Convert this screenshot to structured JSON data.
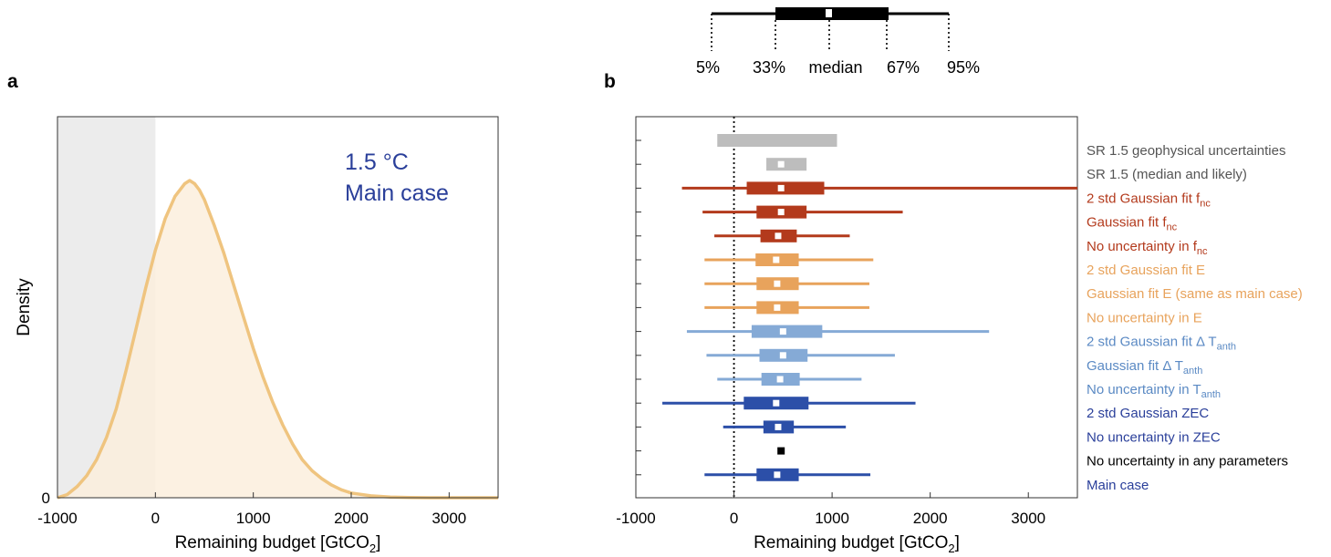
{
  "figure": {
    "legend_key": {
      "labels": [
        "5%",
        "33%",
        "median",
        "67%",
        "95%"
      ]
    },
    "chart_data": [
      {
        "panel_label": "a",
        "type": "area",
        "xlabel": "Remaining budget [GtCO",
        "xlabel_sub": "2",
        "xlabel_end": "]",
        "ylabel": "Density",
        "ytick_label": "0",
        "xlim": [
          -1000,
          3500
        ],
        "xticks": [
          -1000,
          0,
          1000,
          2000,
          3000
        ],
        "xtick_labels": [
          "-1000",
          "0",
          "1000",
          "2000",
          "3000"
        ],
        "annotation_line1": "1.5 °C",
        "annotation_line2": "Main case",
        "annotation_color": "#2a3f9a",
        "shaded_region": [
          -1000,
          0
        ],
        "line_color": "#efc47f",
        "fill_color": "#fbeedd",
        "x": [
          -1000,
          -900,
          -800,
          -700,
          -600,
          -500,
          -400,
          -300,
          -200,
          -100,
          0,
          100,
          200,
          300,
          350,
          400,
          450,
          500,
          600,
          700,
          800,
          900,
          1000,
          1100,
          1200,
          1300,
          1400,
          1500,
          1600,
          1700,
          1800,
          1900,
          2000,
          2200,
          2400,
          2600,
          2800,
          3000,
          3200,
          3500
        ],
        "y": [
          0.0,
          0.01,
          0.035,
          0.07,
          0.12,
          0.19,
          0.28,
          0.4,
          0.53,
          0.66,
          0.78,
          0.88,
          0.95,
          0.99,
          1.0,
          0.99,
          0.97,
          0.94,
          0.86,
          0.77,
          0.67,
          0.57,
          0.47,
          0.38,
          0.3,
          0.23,
          0.17,
          0.12,
          0.085,
          0.06,
          0.04,
          0.025,
          0.015,
          0.006,
          0.002,
          0.001,
          0.0,
          0.0,
          0.0,
          0.0
        ]
      },
      {
        "panel_label": "b",
        "type": "boxplot",
        "xlabel": "Remaining budget [GtCO",
        "xlabel_sub": "2",
        "xlabel_end": "]",
        "xlim": [
          -1000,
          3500
        ],
        "xticks": [
          -1000,
          0,
          1000,
          2000,
          3000
        ],
        "xtick_labels": [
          "-1000",
          "0",
          "1000",
          "2000",
          "3000"
        ],
        "reference_line_x": 0,
        "rows": [
          {
            "label": "SR 1.5 geophysical uncertainties",
            "sub": "",
            "color": "#bdbdbd",
            "label_color": "#555555",
            "style": "bar",
            "p33": -170,
            "p67": 1050
          },
          {
            "label": "SR 1.5 (median and likely)",
            "sub": "",
            "color": "#bdbdbd",
            "label_color": "#555555",
            "style": "box",
            "p33": 330,
            "median": 480,
            "p67": 740
          },
          {
            "label": "2 std Gaussian fit f",
            "sub": "nc",
            "color": "#b33a1c",
            "label_color": "#b33a1c",
            "style": "box",
            "p5": -530,
            "p33": 130,
            "median": 480,
            "p67": 920,
            "p95": 3500
          },
          {
            "label": "Gaussian fit  f",
            "sub": "nc",
            "color": "#b33a1c",
            "label_color": "#b33a1c",
            "style": "box",
            "p5": -320,
            "p33": 230,
            "median": 480,
            "p67": 740,
            "p95": 1720
          },
          {
            "label": "No uncertainty in f",
            "sub": "nc",
            "color": "#b33a1c",
            "label_color": "#b33a1c",
            "style": "box",
            "p5": -200,
            "p33": 270,
            "median": 450,
            "p67": 640,
            "p95": 1180
          },
          {
            "label": "2 std Gaussian fit E",
            "sub": "",
            "color": "#e8a35c",
            "label_color": "#e8a35c",
            "style": "box",
            "p5": -300,
            "p33": 220,
            "median": 430,
            "p67": 660,
            "p95": 1420
          },
          {
            "label": "Gaussian fit E (same as main case)",
            "sub": "",
            "color": "#e8a35c",
            "label_color": "#e8a35c",
            "style": "box",
            "p5": -300,
            "p33": 230,
            "median": 440,
            "p67": 660,
            "p95": 1380
          },
          {
            "label": "No uncertainty in E",
            "sub": "",
            "color": "#e8a35c",
            "label_color": "#e8a35c",
            "style": "box",
            "p5": -300,
            "p33": 230,
            "median": 440,
            "p67": 660,
            "p95": 1380
          },
          {
            "label": "2 std Gaussian fit Δ T",
            "sub": "anth",
            "color": "#85aad6",
            "label_color": "#5b8ac4",
            "style": "box",
            "p5": -480,
            "p33": 180,
            "median": 500,
            "p67": 900,
            "p95": 2600
          },
          {
            "label": "Gaussian fit  Δ T",
            "sub": "anth",
            "color": "#85aad6",
            "label_color": "#5b8ac4",
            "style": "box",
            "p5": -280,
            "p33": 260,
            "median": 500,
            "p67": 750,
            "p95": 1640
          },
          {
            "label": "No uncertainty in T",
            "sub": "anth",
            "color": "#85aad6",
            "label_color": "#5b8ac4",
            "style": "box",
            "p5": -170,
            "p33": 280,
            "median": 470,
            "p67": 670,
            "p95": 1300
          },
          {
            "label": "2 std Gaussian ZEC",
            "sub": "",
            "color": "#2c4fa8",
            "label_color": "#2a3f9a",
            "style": "box",
            "p5": -730,
            "p33": 100,
            "median": 430,
            "p67": 760,
            "p95": 1850
          },
          {
            "label": "No uncertainty in ZEC",
            "sub": "",
            "color": "#2c4fa8",
            "label_color": "#2a3f9a",
            "style": "box",
            "p5": -110,
            "p33": 300,
            "median": 450,
            "p67": 610,
            "p95": 1140
          },
          {
            "label": "No uncertainty in any parameters",
            "sub": "",
            "color": "#000000",
            "label_color": "#000000",
            "style": "point",
            "median": 480
          },
          {
            "label": "Main case",
            "sub": "",
            "color": "#2c4fa8",
            "label_color": "#2a3f9a",
            "style": "box",
            "p5": -300,
            "p33": 230,
            "median": 440,
            "p67": 660,
            "p95": 1390
          }
        ]
      }
    ]
  }
}
